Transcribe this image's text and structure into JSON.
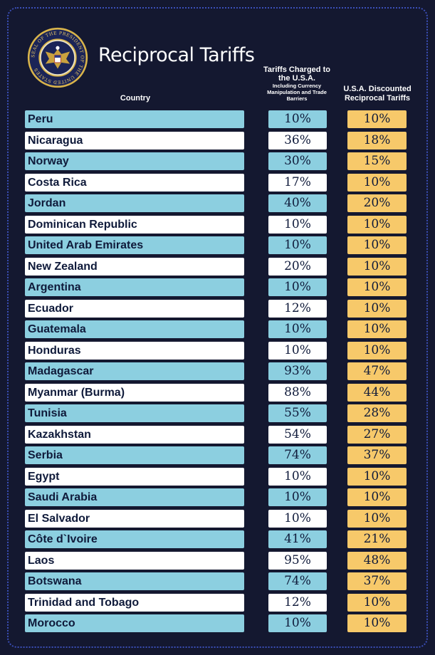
{
  "header": {
    "title": "Reciprocal Tariffs",
    "seal_text": "SEAL OF THE PRESIDENT OF THE UNITED STATES",
    "col_country": "Country",
    "col_charged_main": "Tariffs Charged to the U.S.A.",
    "col_charged_sub": "Including Currency Manipulation and Trade Barriers",
    "col_discounted": "U.S.A. Discounted Reciprocal Tariffs"
  },
  "colors": {
    "background": "#141830",
    "row_blue": "#8ccfe0",
    "row_white": "#ffffff",
    "discount_fill": "#f7c96a",
    "frame_dots": "#3b4fb8"
  },
  "rows": [
    {
      "country": "Peru",
      "charged": "10%",
      "discounted": "10%"
    },
    {
      "country": "Nicaragua",
      "charged": "36%",
      "discounted": "18%"
    },
    {
      "country": "Norway",
      "charged": "30%",
      "discounted": "15%"
    },
    {
      "country": "Costa Rica",
      "charged": "17%",
      "discounted": "10%"
    },
    {
      "country": "Jordan",
      "charged": "40%",
      "discounted": "20%"
    },
    {
      "country": "Dominican Republic",
      "charged": "10%",
      "discounted": "10%"
    },
    {
      "country": "United Arab Emirates",
      "charged": "10%",
      "discounted": "10%"
    },
    {
      "country": "New Zealand",
      "charged": "20%",
      "discounted": "10%"
    },
    {
      "country": "Argentina",
      "charged": "10%",
      "discounted": "10%"
    },
    {
      "country": "Ecuador",
      "charged": "12%",
      "discounted": "10%"
    },
    {
      "country": "Guatemala",
      "charged": "10%",
      "discounted": "10%"
    },
    {
      "country": "Honduras",
      "charged": "10%",
      "discounted": "10%"
    },
    {
      "country": "Madagascar",
      "charged": "93%",
      "discounted": "47%"
    },
    {
      "country": "Myanmar (Burma)",
      "charged": "88%",
      "discounted": "44%"
    },
    {
      "country": "Tunisia",
      "charged": "55%",
      "discounted": "28%"
    },
    {
      "country": "Kazakhstan",
      "charged": "54%",
      "discounted": "27%"
    },
    {
      "country": "Serbia",
      "charged": "74%",
      "discounted": "37%"
    },
    {
      "country": "Egypt",
      "charged": "10%",
      "discounted": "10%"
    },
    {
      "country": "Saudi Arabia",
      "charged": "10%",
      "discounted": "10%"
    },
    {
      "country": "El Salvador",
      "charged": "10%",
      "discounted": "10%"
    },
    {
      "country": "Côte d`Ivoire",
      "charged": "41%",
      "discounted": "21%"
    },
    {
      "country": "Laos",
      "charged": "95%",
      "discounted": "48%"
    },
    {
      "country": "Botswana",
      "charged": "74%",
      "discounted": "37%"
    },
    {
      "country": "Trinidad and Tobago",
      "charged": "12%",
      "discounted": "10%"
    },
    {
      "country": "Morocco",
      "charged": "10%",
      "discounted": "10%"
    }
  ]
}
